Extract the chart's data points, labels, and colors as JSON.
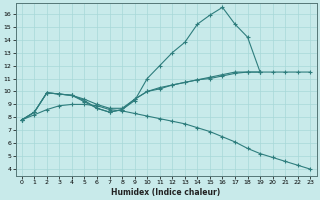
{
  "xlabel": "Humidex (Indice chaleur)",
  "ylabel": "",
  "xlim": [
    -0.5,
    23.5
  ],
  "ylim": [
    3.5,
    16.8
  ],
  "yticks": [
    4,
    5,
    6,
    7,
    8,
    9,
    10,
    11,
    12,
    13,
    14,
    15,
    16
  ],
  "xticks": [
    0,
    1,
    2,
    3,
    4,
    5,
    6,
    7,
    8,
    9,
    10,
    11,
    12,
    13,
    14,
    15,
    16,
    17,
    18,
    19,
    20,
    21,
    22,
    23
  ],
  "line_color": "#2e7d7d",
  "bg_color": "#c8eaea",
  "grid_color": "#a8d8d8",
  "series": [
    {
      "x": [
        0,
        1,
        2,
        3,
        4,
        5,
        6,
        7,
        8,
        9,
        10,
        11,
        12,
        13,
        14,
        15,
        16,
        17,
        18,
        19,
        20,
        21,
        22,
        23
      ],
      "y": [
        7.8,
        8.4,
        9.9,
        9.8,
        9.7,
        9.4,
        9.0,
        8.7,
        8.7,
        9.4,
        10.0,
        10.3,
        10.5,
        10.7,
        10.9,
        11.0,
        11.2,
        11.4,
        11.5,
        11.5,
        11.5,
        11.5,
        11.5,
        11.5
      ]
    },
    {
      "x": [
        0,
        1,
        2,
        3,
        4,
        5,
        6,
        7,
        8,
        9,
        10,
        11,
        12,
        13,
        14,
        15,
        16,
        17,
        18,
        19
      ],
      "y": [
        7.8,
        8.4,
        9.9,
        9.8,
        9.7,
        9.3,
        8.7,
        8.4,
        8.6,
        9.3,
        11.0,
        12.0,
        13.0,
        13.8,
        15.2,
        15.9,
        16.5,
        15.2,
        14.2,
        11.5
      ]
    },
    {
      "x": [
        0,
        1,
        2,
        3,
        4,
        5,
        6,
        7,
        8,
        9,
        10,
        11,
        12,
        13,
        14,
        15,
        16,
        17,
        18,
        19
      ],
      "y": [
        7.8,
        8.4,
        9.9,
        9.8,
        9.7,
        9.2,
        8.7,
        8.4,
        8.6,
        9.4,
        10.0,
        10.2,
        10.5,
        10.7,
        10.9,
        11.1,
        11.3,
        11.5,
        11.5,
        11.5
      ]
    },
    {
      "x": [
        0,
        1,
        2,
        3,
        4,
        5,
        6,
        7,
        8,
        9,
        10,
        11,
        12,
        13,
        14,
        15,
        16,
        17,
        18,
        19,
        20,
        21,
        22,
        23
      ],
      "y": [
        7.8,
        8.2,
        8.6,
        8.9,
        9.0,
        9.0,
        8.9,
        8.6,
        8.5,
        8.3,
        8.1,
        7.9,
        7.7,
        7.5,
        7.2,
        6.9,
        6.5,
        6.1,
        5.6,
        5.2,
        4.9,
        4.6,
        4.3,
        4.0
      ]
    }
  ]
}
